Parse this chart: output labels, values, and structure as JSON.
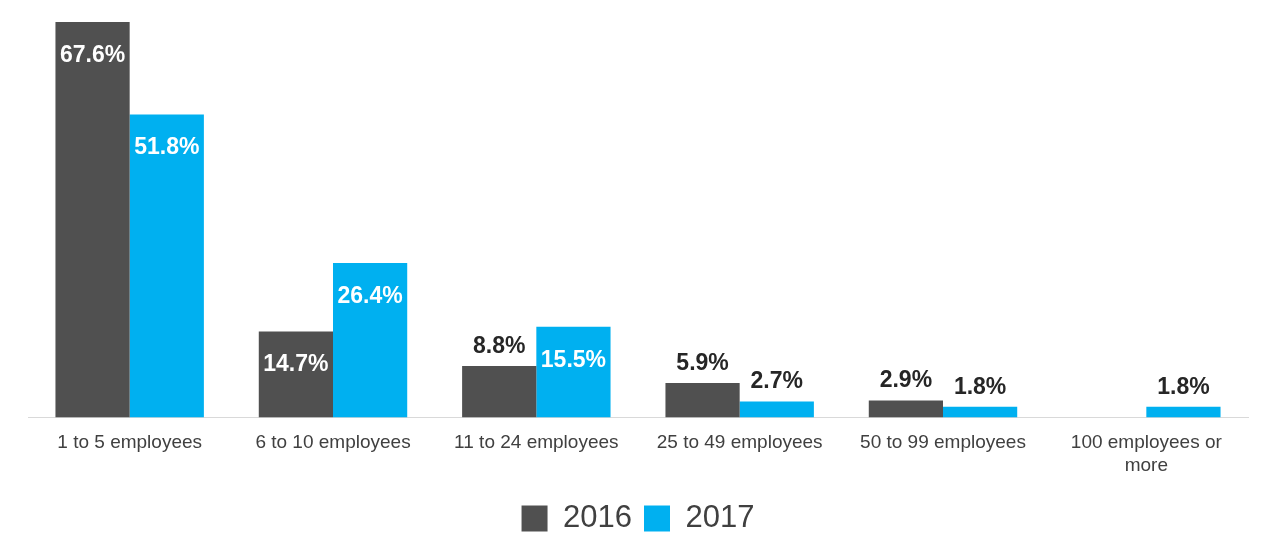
{
  "chart_data": {
    "type": "bar",
    "categories": [
      "1 to 5 employees",
      "6 to 10 employees",
      "11 to 24 employees",
      "25 to 49 employees",
      "50 to 99 employees",
      "100 employees or more"
    ],
    "series": [
      {
        "name": "2016",
        "color": "#505050",
        "values": [
          67.6,
          14.7,
          8.8,
          5.9,
          2.9,
          null
        ],
        "value_labels": [
          "67.6%",
          "14.7%",
          "8.8%",
          "5.9%",
          "2.9%",
          null
        ]
      },
      {
        "name": "2017",
        "color": "#00b0f0",
        "values": [
          51.8,
          26.4,
          15.5,
          2.7,
          1.8,
          1.8
        ],
        "value_labels": [
          "51.8%",
          "26.4%",
          "15.5%",
          "2.7%",
          "1.8%",
          "1.8%"
        ]
      }
    ],
    "legend": "bottom",
    "grid": false
  }
}
